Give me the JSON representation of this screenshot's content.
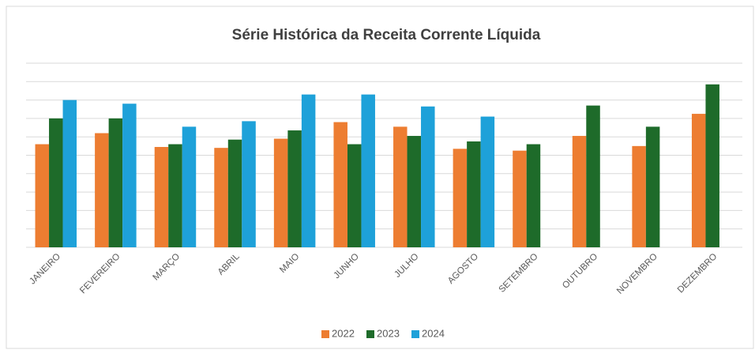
{
  "chart_data": {
    "type": "bar",
    "title": "Série Histórica da Receita Corrente Líquida",
    "categories": [
      "JANEIRO",
      "FEVEREIRO",
      "MARÇO",
      "ABRIL",
      "MAIO",
      "JUNHO",
      "JULHO",
      "AGOSTO",
      "SETEMBRO",
      "OUTUBRO",
      "NOVEMBRO",
      "DEZEMBRO"
    ],
    "series": [
      {
        "name": "2022",
        "color": "#ed7d31",
        "values": [
          5.6,
          6.2,
          5.45,
          5.4,
          5.9,
          6.8,
          6.55,
          5.35,
          5.25,
          6.05,
          5.5,
          7.25
        ]
      },
      {
        "name": "2023",
        "color": "#1e6b2a",
        "values": [
          7.0,
          7.0,
          5.6,
          5.85,
          6.35,
          5.6,
          6.05,
          5.75,
          5.6,
          7.7,
          6.55,
          8.85
        ]
      },
      {
        "name": "2024",
        "color": "#1ea1d9",
        "values": [
          8.0,
          7.8,
          6.55,
          6.85,
          8.3,
          8.3,
          7.65,
          7.1,
          null,
          null,
          null,
          null
        ]
      }
    ],
    "ylim": [
      0,
      10
    ],
    "yticks": [
      0,
      1,
      2,
      3,
      4,
      5,
      6,
      7,
      8,
      9,
      10
    ],
    "grid": true,
    "legend": "bottom"
  }
}
